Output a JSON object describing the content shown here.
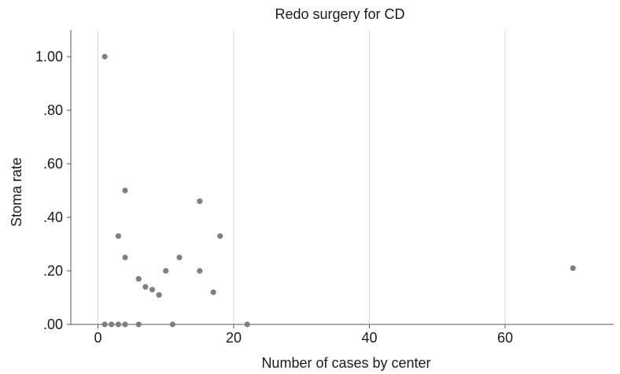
{
  "chart_data": {
    "type": "scatter",
    "title": "Redo surgery for CD",
    "xlabel": "Number of cases by center",
    "ylabel": "Stoma rate",
    "xlim": [
      -4,
      76
    ],
    "ylim": [
      0,
      1.1
    ],
    "x_ticks": [
      0,
      20,
      40,
      60
    ],
    "x_tick_labels": [
      "0",
      "20",
      "40",
      "60"
    ],
    "y_ticks": [
      0,
      0.2,
      0.4,
      0.6,
      0.8,
      1.0
    ],
    "y_tick_labels": [
      ".00",
      ".20",
      ".40",
      ".60",
      ".80",
      "1.00"
    ],
    "grid": "vertical",
    "point_color": "#7f7f7f",
    "points": [
      {
        "x": 1,
        "y": 1.0
      },
      {
        "x": 1,
        "y": 0.0
      },
      {
        "x": 2,
        "y": 0.0
      },
      {
        "x": 3,
        "y": 0.0
      },
      {
        "x": 4,
        "y": 0.0
      },
      {
        "x": 3,
        "y": 0.33
      },
      {
        "x": 4,
        "y": 0.5
      },
      {
        "x": 4,
        "y": 0.25
      },
      {
        "x": 6,
        "y": 0.17
      },
      {
        "x": 6,
        "y": 0.0
      },
      {
        "x": 7,
        "y": 0.14
      },
      {
        "x": 8,
        "y": 0.13
      },
      {
        "x": 9,
        "y": 0.11
      },
      {
        "x": 10,
        "y": 0.2
      },
      {
        "x": 11,
        "y": 0.0
      },
      {
        "x": 12,
        "y": 0.25
      },
      {
        "x": 15,
        "y": 0.46
      },
      {
        "x": 15,
        "y": 0.2
      },
      {
        "x": 17,
        "y": 0.12
      },
      {
        "x": 18,
        "y": 0.33
      },
      {
        "x": 22,
        "y": 0.0
      },
      {
        "x": 70,
        "y": 0.21
      }
    ]
  }
}
